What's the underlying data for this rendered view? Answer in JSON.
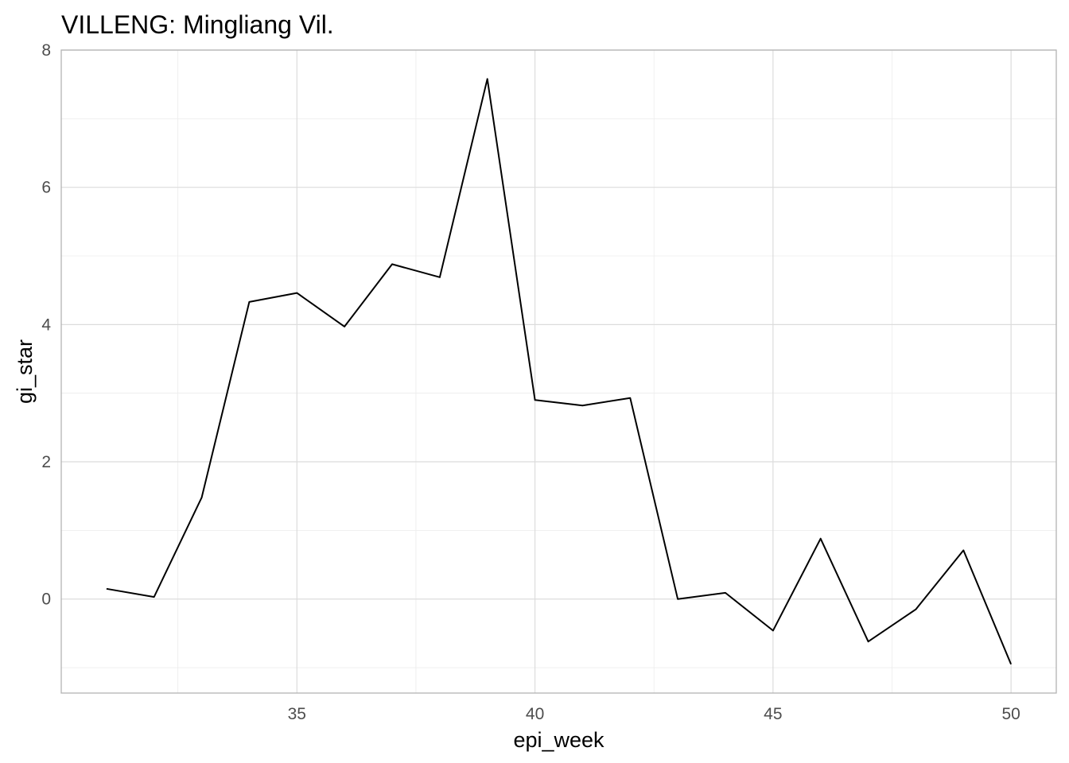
{
  "chart_data": {
    "type": "line",
    "title": "VILLENG: Mingliang Vil.",
    "xlabel": "epi_week",
    "ylabel": "gi_star",
    "xlim": [
      30.05,
      50.95
    ],
    "ylim": [
      -1.37,
      8.0
    ],
    "x_ticks": [
      35,
      40,
      45,
      50
    ],
    "y_ticks": [
      0,
      2,
      4,
      6,
      8
    ],
    "grid": true,
    "series": [
      {
        "x": [
          31,
          32,
          33,
          34,
          35,
          36,
          37,
          38,
          39,
          40,
          41,
          42,
          43,
          44,
          45,
          46,
          47,
          48,
          49,
          50
        ],
        "y": [
          0.15,
          0.03,
          1.48,
          4.33,
          4.46,
          3.97,
          4.88,
          4.69,
          7.58,
          2.9,
          2.82,
          2.93,
          0.0,
          0.09,
          -0.46,
          0.88,
          -0.62,
          -0.15,
          0.71,
          -0.95
        ]
      }
    ]
  }
}
